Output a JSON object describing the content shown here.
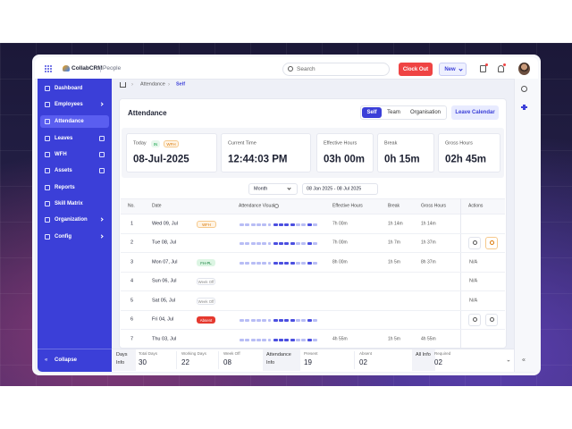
{
  "app": {
    "brand": "CollabCRM",
    "module": "People",
    "search": "Search",
    "clock_out": "Clock Out",
    "new_button": "New"
  },
  "nav": {
    "items": [
      "Dashboard",
      "Employees",
      "Attendance",
      "Leaves",
      "WFH",
      "Assets",
      "Reports",
      "Skill Matrix",
      "Organization",
      "Config"
    ],
    "collapse": "Collapse"
  },
  "breadcrumb": [
    "Attendance",
    "Self"
  ],
  "page": {
    "title": "Attendance",
    "tabs": [
      "Self",
      "Team",
      "Organisation"
    ],
    "leave_calendar": "Leave Calendar"
  },
  "stats": [
    {
      "label": "Today",
      "tags": [
        "IN",
        "WFH"
      ],
      "value": "08-Jul-2025"
    },
    {
      "label": "Current Time",
      "value": "12:44:03 PM"
    },
    {
      "label": "Effective Hours",
      "value": "03h 00m"
    },
    {
      "label": "Break",
      "value": "0h 15m"
    },
    {
      "label": "Gross Hours",
      "value": "02h 45m"
    }
  ],
  "filter": {
    "period": "Month",
    "range": "08 Jan 2025 - 08 Jul 2025"
  },
  "table": {
    "headers": [
      "No.",
      "Date",
      "Attendance Visual",
      "Effective Hours",
      "Break",
      "Gross Hours",
      "Actions"
    ],
    "rows": [
      {
        "no": "1",
        "date": "Wed 09, Jul",
        "tag": "WFH",
        "effective": "7h 00m",
        "break": "1h 14m",
        "gross": "1h 14m"
      },
      {
        "no": "2",
        "date": "Tue 08, Jul",
        "effective": "7h 00m",
        "break": "1h 7m",
        "gross": "1h 37m"
      },
      {
        "no": "3",
        "date": "Mon 07, Jul",
        "tag": "FH-PL",
        "effective": "8h 00m",
        "break": "1h 5m",
        "gross": "8h 37m",
        "actions": "N/A"
      },
      {
        "no": "4",
        "date": "Sun 06, Jul",
        "tag": "Week Off",
        "actions": "N/A"
      },
      {
        "no": "5",
        "date": "Sat 05, Jul",
        "tag": "Week Off",
        "actions": "N/A"
      },
      {
        "no": "6",
        "date": "Fri 04, Jul",
        "tag": "Absent"
      },
      {
        "no": "7",
        "date": "Thu 03, Jul",
        "effective": "4h 55m",
        "break": "1h 5m",
        "gross": "4h 55m"
      }
    ]
  },
  "summary": [
    {
      "heading": "Days Info",
      "items": [
        {
          "label": "Total Days",
          "value": "30"
        },
        {
          "label": "Working Days",
          "value": "22"
        },
        {
          "label": "Week Off",
          "value": "08"
        }
      ]
    },
    {
      "heading": "Attendance Info",
      "items": [
        {
          "label": "Present",
          "value": "19"
        },
        {
          "label": "Absent",
          "value": "02"
        }
      ]
    },
    {
      "heading": "All Info",
      "items": [
        {
          "label": "Required",
          "value": "02"
        }
      ]
    }
  ]
}
